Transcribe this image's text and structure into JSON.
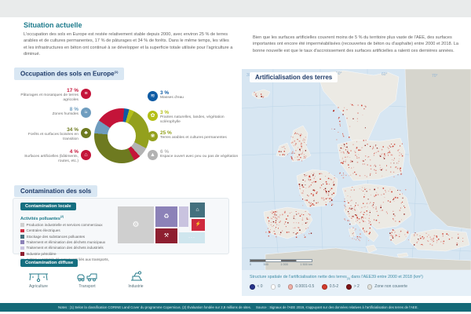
{
  "intro": {
    "title": "Situation actuelle",
    "left_text": "L'occupation des sols en Europe est restée relativement stable depuis 2000, avec environ 25 % de terres arables et de cultures permanentes, 17 % de pâturages et 34 % de forêts. Dans le même temps, les villes et les infrastructures en béton ont continué à se développer et la superficie totale utilisée pour l'agriculture a diminué.",
    "right_text": "Bien que les surfaces artificielles couvrent moins de 5 % du territoire plus vaste de l'AEE, des surfaces importantes ont encore été imperméabilisées (recouvertes de béton ou d'asphalte) entre 2000 et 2018. La bonne nouvelle est que le taux d'accroissement des surfaces artificielles a ralenti ces dernières années."
  },
  "land_cover": {
    "section_title": "Occupation des sols en Europe",
    "section_note": "(1)",
    "chart_data": {
      "type": "pie",
      "subtype": "donut",
      "unit": "%",
      "start_angle_deg": -56,
      "segments": [
        {
          "name": "paturages",
          "label": "Pâturages et mosaïques de terres agricoles",
          "value": 17,
          "color": "#c41439",
          "side": "left",
          "row": 0,
          "icon": "pasture-icon",
          "glyph": "≡"
        },
        {
          "name": "masses-eau",
          "label": "Masses d'eau",
          "value": 3,
          "color": "#0f5ba4",
          "side": "right",
          "row": 0,
          "icon": "water-icon",
          "glyph": "≋"
        },
        {
          "name": "prairies",
          "label": "Prairies naturelles, landes, végétation sclérophylle",
          "value": 3,
          "color": "#b4bf17",
          "side": "right",
          "row": 1,
          "icon": "grassland-icon",
          "glyph": "✿"
        },
        {
          "name": "terres-arables",
          "label": "Terres arables et cultures permanentes",
          "value": 25,
          "color": "#93a01d",
          "side": "right",
          "row": 2,
          "icon": "crop-icon",
          "glyph": "❀"
        },
        {
          "name": "espace-ouvert",
          "label": "Espace ouvert avec peu ou pas de végétation",
          "value": 6,
          "color": "#b3b3b3",
          "side": "right",
          "row": 3,
          "icon": "open-space-icon",
          "glyph": "▲"
        },
        {
          "name": "surfaces-artificielles",
          "label": "Surfaces artificielles (bâtiments, routes, etc.)",
          "value": 4,
          "color": "#c41439",
          "side": "left",
          "row": 3,
          "icon": "buildings-icon",
          "glyph": "⌂"
        },
        {
          "name": "forets",
          "label": "Forêts et surfaces boisées en transition",
          "value": 34,
          "color": "#6e7a20",
          "side": "left",
          "row": 2,
          "icon": "forest-icon",
          "glyph": "♣"
        },
        {
          "name": "zones-humides",
          "label": "Zones humides",
          "value": 8,
          "color": "#6f9dbf",
          "side": "left",
          "row": 1,
          "icon": "wetland-icon",
          "glyph": "≈"
        }
      ]
    }
  },
  "contamination": {
    "section_title": "Contamination des sols",
    "local": {
      "badge": "Contamination locale",
      "legend_title": "Activités polluantes",
      "legend_note": "(2)",
      "items": [
        {
          "label": "Production industrielle et services commerciaux",
          "color": "#cfcfcf"
        },
        {
          "label": "Centrales électriques",
          "color": "#cf2a3e"
        },
        {
          "label": "Stockage des substances polluantes",
          "color": "#44707e"
        },
        {
          "label": "Traitement et élimination des déchets municipaux",
          "color": "#8c82b8"
        },
        {
          "label": "Traitement et élimination des déchets industriels",
          "color": "#c9c3df"
        },
        {
          "label": "Industrie pétrolière",
          "color": "#8e1f30"
        },
        {
          "label": "Autres, y compris déversements liés aux transports, mines et armée",
          "color": "#cfe6ee"
        }
      ],
      "others_dots": "..."
    },
    "diffuse": {
      "badge": "Contamination diffuse",
      "items": [
        {
          "label": "Agriculture",
          "icon": "agriculture-icon"
        },
        {
          "label": "Transport",
          "icon": "transport-icon"
        },
        {
          "label": "Industrie",
          "icon": "industry-icon"
        }
      ]
    }
  },
  "map": {
    "title": "Artificialisation des terres",
    "legend": {
      "title": "Structure spatiale de l'artificialisation nette des terres",
      "title_note": "(3)",
      "title_rest": " dans l'AEE39 entre 2000 et 2018 (km²)",
      "items": [
        {
          "label": "< 0",
          "color": "#27348b"
        },
        {
          "label": "0",
          "color": "#ffffff"
        },
        {
          "label": "0.0001-0.5",
          "color": "#efafa6"
        },
        {
          "label": "0.5-2",
          "color": "#d23b2c"
        },
        {
          "label": "> 2",
          "color": "#7c1316"
        },
        {
          "label": "Zone non couverte",
          "color": "#e0e0da"
        }
      ]
    },
    "scale": {
      "labels": [
        "0",
        "500",
        "1 000",
        "1 500 km"
      ]
    },
    "graticule_labels": [
      "30°",
      "40°",
      "50°",
      "60°",
      "70°"
    ]
  },
  "footer": {
    "notes": "Notes : (1) Selon la classification CORINE Land Cover du programme Copernicus. (2) Évaluation fondée sur 2,8 millions de sites.",
    "source": "Source : Signaux de l'AEE 2019, s'appuyant sur des données relatives à l'artificialisation des terres de l'AEE."
  }
}
